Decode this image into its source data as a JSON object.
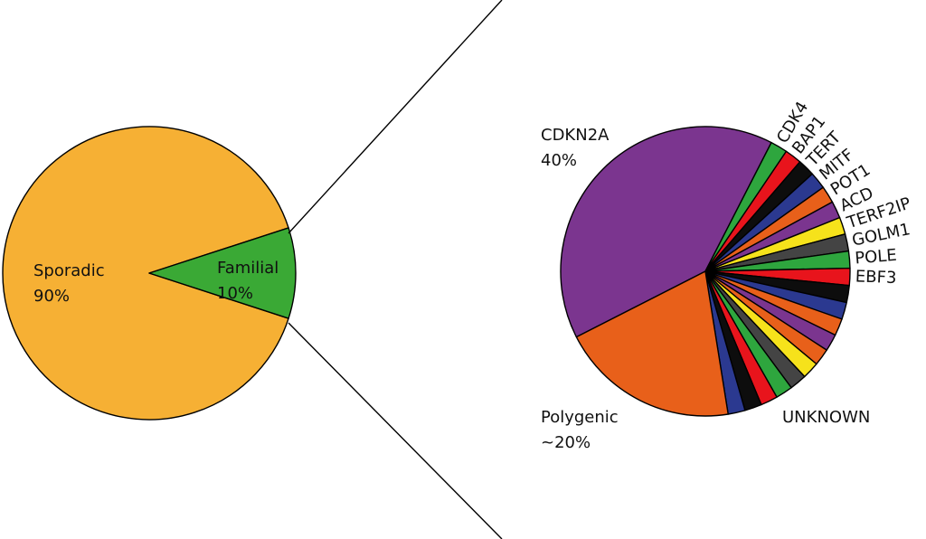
{
  "chart_data": [
    {
      "type": "pie",
      "start_angle": 108,
      "categories": [
        "Sporadic",
        "Familial"
      ],
      "values": [
        90,
        10
      ],
      "value_labels": [
        "90%",
        "10%"
      ],
      "colors": [
        "#f6b034",
        "#3aa935"
      ]
    },
    {
      "type": "pie",
      "start_angle": -117,
      "categories": [
        "CDKN2A",
        "CDK4",
        "BAP1",
        "TERT",
        "MITF",
        "POT1",
        "ACD",
        "TERF2IP",
        "GOLM1",
        "POLE",
        "EBF3",
        null,
        null,
        null,
        null,
        null,
        null,
        null,
        null,
        null,
        null,
        null,
        "Polygenic"
      ],
      "values": [
        40,
        1.9,
        1.9,
        1.9,
        1.9,
        1.9,
        1.9,
        1.9,
        1.9,
        1.9,
        1.9,
        1.9,
        1.9,
        1.9,
        1.9,
        1.9,
        1.9,
        1.9,
        1.9,
        1.9,
        1.9,
        1.9,
        20
      ],
      "value_labels": [
        "40%",
        null,
        null,
        null,
        null,
        null,
        null,
        null,
        null,
        null,
        null,
        null,
        null,
        null,
        null,
        null,
        null,
        null,
        null,
        null,
        null,
        null,
        "~20%"
      ],
      "colors": [
        "#7b358f",
        "#2ea63e",
        "#e8141c",
        "#0d0d0d",
        "#2b3990",
        "#e8601a",
        "#7b358f",
        "#f6e21b",
        "#444444",
        "#2ea63e",
        "#e8141c",
        "#0d0d0d",
        "#2b3990",
        "#e8601a",
        "#7b358f",
        "#e8601a",
        "#f6e21b",
        "#444444",
        "#2ea63e",
        "#e8141c",
        "#0d0d0d",
        "#2b3990",
        "#e8601a"
      ],
      "annotation": "UNKNOWN"
    }
  ]
}
